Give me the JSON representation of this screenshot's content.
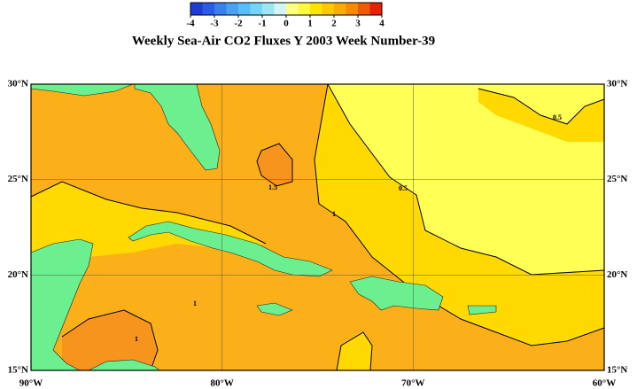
{
  "title": "Weekly Sea-Air CO2 Fluxes Y 2003 Week Number-39",
  "colorbar": {
    "ticks": [
      -4,
      -3,
      -2,
      -1,
      0,
      1,
      2,
      3,
      4
    ],
    "colors": [
      "#1f3bd6",
      "#2a5ae8",
      "#3a7ff0",
      "#4aa0f5",
      "#55bff8",
      "#72d6f8",
      "#9fe6f5",
      "#d2f5f7",
      "#ffff80",
      "#fff840",
      "#ffe400",
      "#ffc800",
      "#fcab00",
      "#f88a00",
      "#f05a00",
      "#e82000"
    ]
  },
  "map": {
    "lon_ticks": [
      {
        "value": -90,
        "label": "90°W"
      },
      {
        "value": -80,
        "label": "80°W"
      },
      {
        "value": -70,
        "label": "70°W"
      },
      {
        "value": -60,
        "label": "60°W"
      }
    ],
    "lat_ticks": [
      {
        "value": 15,
        "label": "15°N"
      },
      {
        "value": 20,
        "label": "20°N"
      },
      {
        "value": 25,
        "label": "25°N"
      },
      {
        "value": 30,
        "label": "30°N"
      }
    ],
    "contour_labels": [
      "0.5",
      "0.5",
      "1.5",
      "1",
      "1",
      "1"
    ]
  }
}
